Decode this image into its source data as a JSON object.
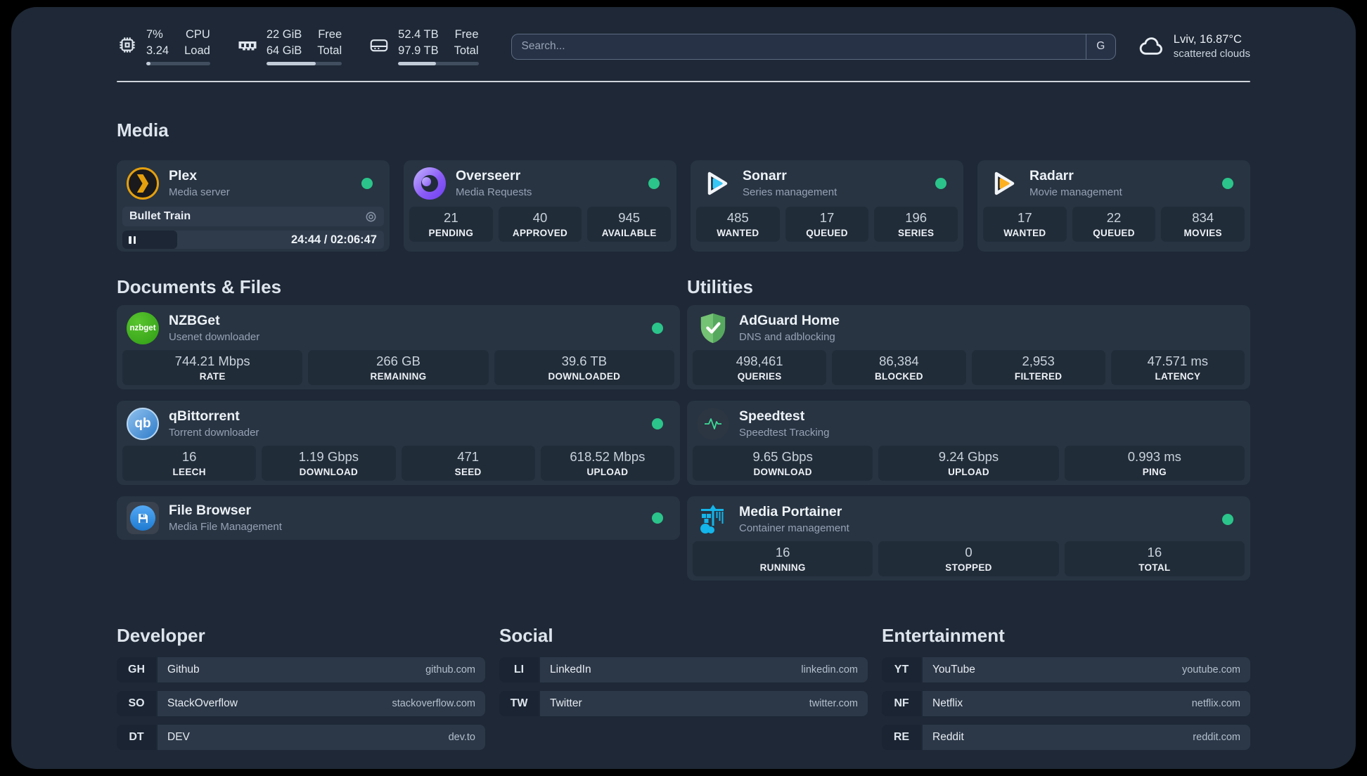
{
  "colors": {
    "background": "#000000",
    "panel": "#1e2836",
    "card": "#283442",
    "stat_box": "#212c39",
    "status_online_green": "#2bc48a",
    "plex_amber": "#e5a00d",
    "sonarr_cyan": "#38c6f4",
    "radarr_amber": "#fdb022",
    "nzbget_green": "#3aab26",
    "qbittorrent_blue": "#2f7cc9",
    "adguard_green": "#68b873",
    "speedtest_green": "#3ddc97",
    "filebrowser_blue": "#2f8fe0",
    "overseerr_purple": "#8b5cf6",
    "portainer_blue": "#13b5ea"
  },
  "header": {
    "resources": [
      {
        "icon": "cpu-icon",
        "rows": [
          {
            "value": "7%",
            "label": "CPU"
          },
          {
            "value": "3.24",
            "label": "Load"
          }
        ],
        "progress": "7%"
      },
      {
        "icon": "memory-icon",
        "rows": [
          {
            "value": "22 GiB",
            "label": "Free"
          },
          {
            "value": "64 GiB",
            "label": "Total"
          }
        ],
        "progress": "65%"
      },
      {
        "icon": "disk-icon",
        "rows": [
          {
            "value": "52.4 TB",
            "label": "Free"
          },
          {
            "value": "97.9 TB",
            "label": "Total"
          }
        ],
        "progress": "47%"
      }
    ],
    "search": {
      "placeholder": "Search...",
      "provider": "G"
    },
    "weather": {
      "summary": "Lviv, 16.87°C",
      "condition": "scattered clouds"
    }
  },
  "sections": {
    "media": {
      "title": "Media",
      "cards": [
        {
          "name": "Plex",
          "description": "Media server",
          "online": true,
          "icon": "plex-icon",
          "player": {
            "title": "Bullet Train",
            "time": "24:44 / 02:06:47",
            "progress": "21%"
          }
        },
        {
          "name": "Overseerr",
          "description": "Media Requests",
          "online": true,
          "icon": "overseerr-icon",
          "stats": [
            {
              "value": "21",
              "label": "PENDING"
            },
            {
              "value": "40",
              "label": "APPROVED"
            },
            {
              "value": "945",
              "label": "AVAILABLE"
            }
          ]
        },
        {
          "name": "Sonarr",
          "description": "Series management",
          "online": true,
          "icon": "sonarr-icon",
          "stats": [
            {
              "value": "485",
              "label": "WANTED"
            },
            {
              "value": "17",
              "label": "QUEUED"
            },
            {
              "value": "196",
              "label": "SERIES"
            }
          ]
        },
        {
          "name": "Radarr",
          "description": "Movie management",
          "online": true,
          "icon": "radarr-icon",
          "stats": [
            {
              "value": "17",
              "label": "WANTED"
            },
            {
              "value": "22",
              "label": "QUEUED"
            },
            {
              "value": "834",
              "label": "MOVIES"
            }
          ]
        }
      ]
    },
    "documents": {
      "title": "Documents & Files",
      "cards": [
        {
          "name": "NZBGet",
          "description": "Usenet downloader",
          "online": true,
          "icon": "nzbget-icon",
          "stats": [
            {
              "value": "744.21 Mbps",
              "label": "RATE"
            },
            {
              "value": "266 GB",
              "label": "REMAINING"
            },
            {
              "value": "39.6 TB",
              "label": "DOWNLOADED"
            }
          ]
        },
        {
          "name": "qBittorrent",
          "description": "Torrent downloader",
          "online": true,
          "icon": "qbittorrent-icon",
          "stats": [
            {
              "value": "16",
              "label": "LEECH"
            },
            {
              "value": "1.19 Gbps",
              "label": "DOWNLOAD"
            },
            {
              "value": "471",
              "label": "SEED"
            },
            {
              "value": "618.52 Mbps",
              "label": "UPLOAD"
            }
          ]
        },
        {
          "name": "File Browser",
          "description": "Media File Management",
          "online": true,
          "icon": "filebrowser-icon",
          "stats": []
        }
      ]
    },
    "utilities": {
      "title": "Utilities",
      "cards": [
        {
          "name": "AdGuard Home",
          "description": "DNS and adblocking",
          "online": false,
          "icon": "adguard-icon",
          "stats": [
            {
              "value": "498,461",
              "label": "QUERIES"
            },
            {
              "value": "86,384",
              "label": "BLOCKED"
            },
            {
              "value": "2,953",
              "label": "FILTERED"
            },
            {
              "value": "47.571 ms",
              "label": "LATENCY"
            }
          ]
        },
        {
          "name": "Speedtest",
          "description": "Speedtest Tracking",
          "online": false,
          "icon": "speedtest-icon",
          "stats": [
            {
              "value": "9.65 Gbps",
              "label": "DOWNLOAD"
            },
            {
              "value": "9.24 Gbps",
              "label": "UPLOAD"
            },
            {
              "value": "0.993 ms",
              "label": "PING"
            }
          ]
        },
        {
          "name": "Media Portainer",
          "description": "Container management",
          "online": true,
          "icon": "portainer-icon",
          "stats": [
            {
              "value": "16",
              "label": "RUNNING"
            },
            {
              "value": "0",
              "label": "STOPPED"
            },
            {
              "value": "16",
              "label": "TOTAL"
            }
          ]
        }
      ]
    },
    "bookmarks": [
      {
        "title": "Developer",
        "items": [
          {
            "abbr": "GH",
            "name": "Github",
            "url": "github.com"
          },
          {
            "abbr": "SO",
            "name": "StackOverflow",
            "url": "stackoverflow.com"
          },
          {
            "abbr": "DT",
            "name": "DEV",
            "url": "dev.to"
          }
        ]
      },
      {
        "title": "Social",
        "items": [
          {
            "abbr": "LI",
            "name": "LinkedIn",
            "url": "linkedin.com"
          },
          {
            "abbr": "TW",
            "name": "Twitter",
            "url": "twitter.com"
          }
        ]
      },
      {
        "title": "Entertainment",
        "items": [
          {
            "abbr": "YT",
            "name": "YouTube",
            "url": "youtube.com"
          },
          {
            "abbr": "NF",
            "name": "Netflix",
            "url": "netflix.com"
          },
          {
            "abbr": "RE",
            "name": "Reddit",
            "url": "reddit.com"
          }
        ]
      }
    ]
  }
}
